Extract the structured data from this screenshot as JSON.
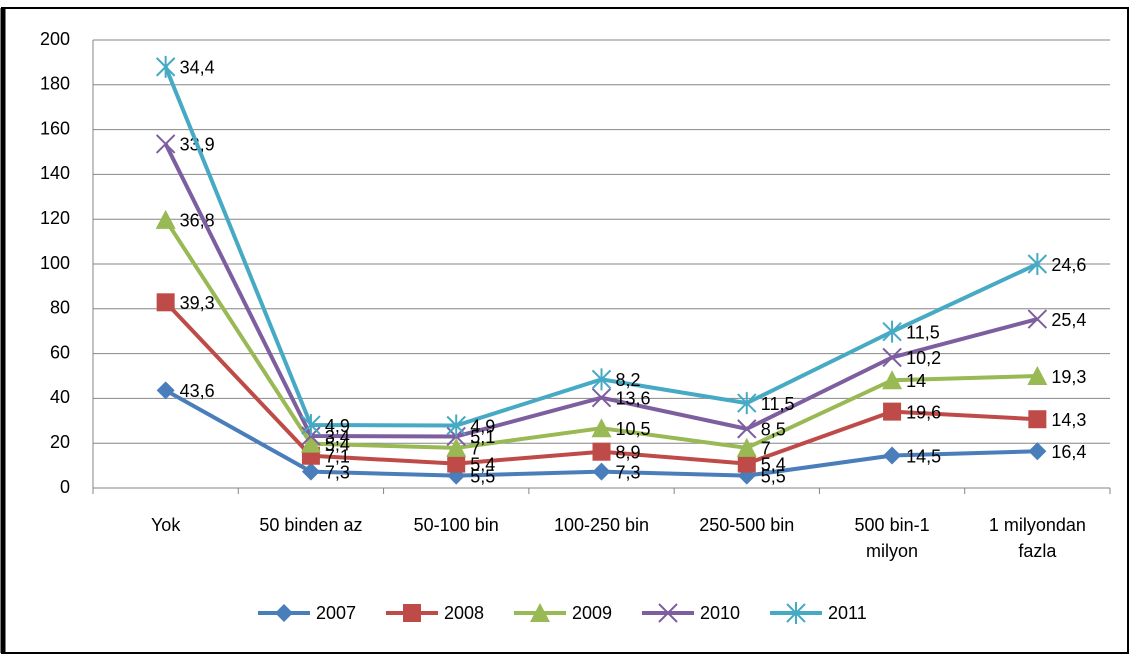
{
  "chart_data": {
    "type": "line",
    "stacked": true,
    "categories": [
      "Yok",
      "50 binden az",
      "50-100 bin",
      "100-250 bin",
      "250-500 bin",
      "500 bin-1 milyon",
      "1 milyondan fazla"
    ],
    "series": [
      {
        "name": "2007",
        "color": "#4a7ebb",
        "marker": "diamond",
        "values": [
          43.6,
          7.3,
          5.5,
          7.3,
          5.5,
          14.5,
          16.4
        ],
        "value_labels": [
          "43,6",
          "7,3",
          "5,5",
          "7,3",
          "5,5",
          "14,5",
          "16,4"
        ]
      },
      {
        "name": "2008",
        "color": "#be4b48",
        "marker": "square",
        "values": [
          39.3,
          7.1,
          5.4,
          8.9,
          5.4,
          19.6,
          14.3
        ],
        "value_labels": [
          "39,3",
          "7,1",
          "5,4",
          "8,9",
          "5,4",
          "19,6",
          "14,3"
        ]
      },
      {
        "name": "2009",
        "color": "#98b954",
        "marker": "triangle",
        "values": [
          36.8,
          5.4,
          7,
          10.5,
          7,
          14,
          19.3
        ],
        "value_labels": [
          "36,8",
          "5,4",
          "7",
          "10,5",
          "7",
          "14",
          "19,3"
        ]
      },
      {
        "name": "2010",
        "color": "#7d5fa0",
        "marker": "x",
        "values": [
          33.9,
          3.4,
          5.1,
          13.6,
          8.5,
          10.2,
          25.4
        ],
        "value_labels": [
          "33,9",
          "3,4",
          "5,1",
          "13,6",
          "8,5",
          "10,2",
          "25,4"
        ]
      },
      {
        "name": "2011",
        "color": "#46aac5",
        "marker": "star",
        "values": [
          34.4,
          4.9,
          4.9,
          8.2,
          11.5,
          11.5,
          24.6
        ],
        "value_labels": [
          "34,4",
          "4,9",
          "4,9",
          "8,2",
          "11,5",
          "11,5",
          "24,6"
        ]
      }
    ],
    "ylim": [
      0,
      200
    ],
    "yticks": [
      0,
      20,
      40,
      60,
      80,
      100,
      120,
      140,
      160,
      180,
      200
    ],
    "grid": true,
    "legend": "bottom"
  }
}
